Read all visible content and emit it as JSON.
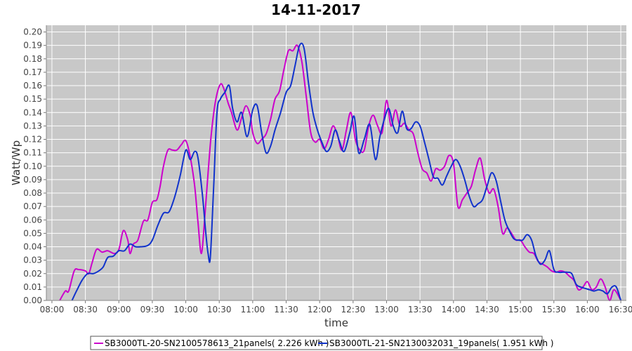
{
  "chart_data": {
    "type": "line",
    "title": "14-11-2017",
    "xlabel": "time",
    "ylabel": "Watt/Wp",
    "xlim": [
      "07:55",
      "16:35"
    ],
    "ylim": [
      0,
      0.205
    ],
    "grid": true,
    "legend_position": "bottom",
    "x_ticks": [
      "08:00",
      "08:30",
      "09:00",
      "09:30",
      "10:00",
      "10:30",
      "11:00",
      "11:30",
      "12:00",
      "12:30",
      "13:00",
      "13:30",
      "14:00",
      "14:30",
      "15:00",
      "15:30",
      "16:00",
      "16:30"
    ],
    "y_ticks": [
      "0.00",
      "0.01",
      "0.02",
      "0.03",
      "0.04",
      "0.05",
      "0.06",
      "0.07",
      "0.08",
      "0.09",
      "0.10",
      "0.11",
      "0.12",
      "0.13",
      "0.14",
      "0.15",
      "0.16",
      "0.17",
      "0.18",
      "0.19",
      "0.20"
    ],
    "series": [
      {
        "name": "SB3000TL-20-SN2100578613_21panels( 2.226 kWh )",
        "color": "#cc00cc",
        "points": [
          [
            "08:07",
            0.0
          ],
          [
            "08:12",
            0.007
          ],
          [
            "08:15",
            0.007
          ],
          [
            "08:20",
            0.022
          ],
          [
            "08:24",
            0.023
          ],
          [
            "08:30",
            0.022
          ],
          [
            "08:33",
            0.02
          ],
          [
            "08:36",
            0.028
          ],
          [
            "08:40",
            0.038
          ],
          [
            "08:45",
            0.036
          ],
          [
            "08:50",
            0.037
          ],
          [
            "08:56",
            0.035
          ],
          [
            "09:00",
            0.038
          ],
          [
            "09:04",
            0.052
          ],
          [
            "09:08",
            0.045
          ],
          [
            "09:10",
            0.035
          ],
          [
            "09:13",
            0.042
          ],
          [
            "09:17",
            0.045
          ],
          [
            "09:22",
            0.059
          ],
          [
            "09:26",
            0.06
          ],
          [
            "09:30",
            0.073
          ],
          [
            "09:34",
            0.075
          ],
          [
            "09:37",
            0.085
          ],
          [
            "09:40",
            0.1
          ],
          [
            "09:44",
            0.112
          ],
          [
            "09:48",
            0.112
          ],
          [
            "09:52",
            0.112
          ],
          [
            "09:56",
            0.116
          ],
          [
            "10:00",
            0.119
          ],
          [
            "10:04",
            0.107
          ],
          [
            "10:08",
            0.085
          ],
          [
            "10:11",
            0.058
          ],
          [
            "10:14",
            0.035
          ],
          [
            "10:17",
            0.062
          ],
          [
            "10:20",
            0.095
          ],
          [
            "10:23",
            0.125
          ],
          [
            "10:27",
            0.15
          ],
          [
            "10:31",
            0.161
          ],
          [
            "10:34",
            0.158
          ],
          [
            "10:38",
            0.147
          ],
          [
            "10:41",
            0.14
          ],
          [
            "10:46",
            0.127
          ],
          [
            "10:50",
            0.136
          ],
          [
            "10:54",
            0.145
          ],
          [
            "10:58",
            0.137
          ],
          [
            "11:00",
            0.125
          ],
          [
            "11:04",
            0.117
          ],
          [
            "11:08",
            0.12
          ],
          [
            "11:12",
            0.124
          ],
          [
            "11:16",
            0.135
          ],
          [
            "11:20",
            0.15
          ],
          [
            "11:24",
            0.156
          ],
          [
            "11:28",
            0.172
          ],
          [
            "11:32",
            0.186
          ],
          [
            "11:36",
            0.186
          ],
          [
            "11:40",
            0.19
          ],
          [
            "11:44",
            0.178
          ],
          [
            "11:48",
            0.152
          ],
          [
            "11:52",
            0.125
          ],
          [
            "11:56",
            0.118
          ],
          [
            "12:00",
            0.12
          ],
          [
            "12:04",
            0.113
          ],
          [
            "12:08",
            0.12
          ],
          [
            "12:12",
            0.13
          ],
          [
            "12:16",
            0.123
          ],
          [
            "12:20",
            0.112
          ],
          [
            "12:24",
            0.127
          ],
          [
            "12:28",
            0.14
          ],
          [
            "12:32",
            0.12
          ],
          [
            "12:36",
            0.112
          ],
          [
            "12:40",
            0.112
          ],
          [
            "12:44",
            0.13
          ],
          [
            "12:48",
            0.138
          ],
          [
            "12:52",
            0.13
          ],
          [
            "12:56",
            0.125
          ],
          [
            "13:00",
            0.149
          ],
          [
            "13:04",
            0.13
          ],
          [
            "13:08",
            0.142
          ],
          [
            "13:12",
            0.13
          ],
          [
            "13:16",
            0.132
          ],
          [
            "13:20",
            0.127
          ],
          [
            "13:24",
            0.124
          ],
          [
            "13:28",
            0.11
          ],
          [
            "13:32",
            0.098
          ],
          [
            "13:36",
            0.095
          ],
          [
            "13:40",
            0.089
          ],
          [
            "13:44",
            0.098
          ],
          [
            "13:48",
            0.097
          ],
          [
            "13:52",
            0.1
          ],
          [
            "13:56",
            0.108
          ],
          [
            "14:00",
            0.102
          ],
          [
            "14:04",
            0.07
          ],
          [
            "14:08",
            0.075
          ],
          [
            "14:12",
            0.08
          ],
          [
            "14:16",
            0.085
          ],
          [
            "14:20",
            0.098
          ],
          [
            "14:24",
            0.106
          ],
          [
            "14:28",
            0.09
          ],
          [
            "14:32",
            0.08
          ],
          [
            "14:36",
            0.083
          ],
          [
            "14:40",
            0.07
          ],
          [
            "14:44",
            0.05
          ],
          [
            "14:48",
            0.054
          ],
          [
            "14:52",
            0.05
          ],
          [
            "14:56",
            0.045
          ],
          [
            "15:00",
            0.045
          ],
          [
            "15:04",
            0.04
          ],
          [
            "15:08",
            0.036
          ],
          [
            "15:12",
            0.035
          ],
          [
            "15:16",
            0.029
          ],
          [
            "15:20",
            0.027
          ],
          [
            "15:24",
            0.025
          ],
          [
            "15:28",
            0.022
          ],
          [
            "15:32",
            0.021
          ],
          [
            "15:36",
            0.022
          ],
          [
            "15:40",
            0.021
          ],
          [
            "15:44",
            0.018
          ],
          [
            "15:48",
            0.015
          ],
          [
            "15:52",
            0.008
          ],
          [
            "15:56",
            0.01
          ],
          [
            "16:00",
            0.014
          ],
          [
            "16:04",
            0.008
          ],
          [
            "16:08",
            0.01
          ],
          [
            "16:12",
            0.016
          ],
          [
            "16:16",
            0.01
          ],
          [
            "16:20",
            0.0
          ],
          [
            "16:24",
            0.008
          ],
          [
            "16:30",
            0.0
          ]
        ]
      },
      {
        "name": "SB3000TL-21-SN2130032031_19panels( 1.951 kWh )",
        "color": "#1133cc",
        "points": [
          [
            "08:18",
            0.0
          ],
          [
            "08:22",
            0.007
          ],
          [
            "08:27",
            0.015
          ],
          [
            "08:32",
            0.02
          ],
          [
            "08:37",
            0.02
          ],
          [
            "08:42",
            0.022
          ],
          [
            "08:46",
            0.025
          ],
          [
            "08:50",
            0.032
          ],
          [
            "08:55",
            0.033
          ],
          [
            "09:00",
            0.037
          ],
          [
            "09:05",
            0.037
          ],
          [
            "09:10",
            0.042
          ],
          [
            "09:15",
            0.04
          ],
          [
            "09:20",
            0.04
          ],
          [
            "09:26",
            0.041
          ],
          [
            "09:30",
            0.045
          ],
          [
            "09:35",
            0.056
          ],
          [
            "09:40",
            0.065
          ],
          [
            "09:45",
            0.066
          ],
          [
            "09:50",
            0.077
          ],
          [
            "09:55",
            0.093
          ],
          [
            "10:00",
            0.112
          ],
          [
            "10:04",
            0.105
          ],
          [
            "10:08",
            0.111
          ],
          [
            "10:11",
            0.106
          ],
          [
            "10:15",
            0.078
          ],
          [
            "10:18",
            0.05
          ],
          [
            "10:20",
            0.035
          ],
          [
            "10:22",
            0.032
          ],
          [
            "10:25",
            0.085
          ],
          [
            "10:28",
            0.14
          ],
          [
            "10:31",
            0.15
          ],
          [
            "10:35",
            0.155
          ],
          [
            "10:39",
            0.16
          ],
          [
            "10:42",
            0.143
          ],
          [
            "10:46",
            0.133
          ],
          [
            "10:50",
            0.14
          ],
          [
            "10:55",
            0.122
          ],
          [
            "11:00",
            0.142
          ],
          [
            "11:04",
            0.145
          ],
          [
            "11:08",
            0.125
          ],
          [
            "11:12",
            0.11
          ],
          [
            "11:16",
            0.115
          ],
          [
            "11:20",
            0.127
          ],
          [
            "11:25",
            0.14
          ],
          [
            "11:30",
            0.155
          ],
          [
            "11:34",
            0.16
          ],
          [
            "11:38",
            0.175
          ],
          [
            "11:42",
            0.19
          ],
          [
            "11:46",
            0.188
          ],
          [
            "11:50",
            0.162
          ],
          [
            "11:54",
            0.14
          ],
          [
            "11:58",
            0.127
          ],
          [
            "12:02",
            0.118
          ],
          [
            "12:06",
            0.111
          ],
          [
            "12:10",
            0.115
          ],
          [
            "12:14",
            0.127
          ],
          [
            "12:18",
            0.118
          ],
          [
            "12:22",
            0.111
          ],
          [
            "12:27",
            0.125
          ],
          [
            "12:31",
            0.137
          ],
          [
            "12:35",
            0.11
          ],
          [
            "12:40",
            0.12
          ],
          [
            "12:45",
            0.131
          ],
          [
            "12:50",
            0.105
          ],
          [
            "12:54",
            0.122
          ],
          [
            "12:58",
            0.135
          ],
          [
            "13:02",
            0.143
          ],
          [
            "13:06",
            0.13
          ],
          [
            "13:10",
            0.125
          ],
          [
            "13:14",
            0.141
          ],
          [
            "13:18",
            0.128
          ],
          [
            "13:22",
            0.128
          ],
          [
            "13:26",
            0.133
          ],
          [
            "13:30",
            0.13
          ],
          [
            "13:34",
            0.118
          ],
          [
            "13:38",
            0.105
          ],
          [
            "13:42",
            0.092
          ],
          [
            "13:46",
            0.091
          ],
          [
            "13:50",
            0.086
          ],
          [
            "13:54",
            0.093
          ],
          [
            "13:58",
            0.1
          ],
          [
            "14:02",
            0.105
          ],
          [
            "14:06",
            0.1
          ],
          [
            "14:10",
            0.09
          ],
          [
            "14:14",
            0.078
          ],
          [
            "14:18",
            0.07
          ],
          [
            "14:22",
            0.072
          ],
          [
            "14:26",
            0.075
          ],
          [
            "14:30",
            0.085
          ],
          [
            "14:34",
            0.095
          ],
          [
            "14:38",
            0.09
          ],
          [
            "14:42",
            0.075
          ],
          [
            "14:46",
            0.06
          ],
          [
            "14:50",
            0.052
          ],
          [
            "14:54",
            0.046
          ],
          [
            "14:58",
            0.045
          ],
          [
            "15:02",
            0.045
          ],
          [
            "15:06",
            0.049
          ],
          [
            "15:10",
            0.045
          ],
          [
            "15:14",
            0.033
          ],
          [
            "15:18",
            0.027
          ],
          [
            "15:22",
            0.03
          ],
          [
            "15:26",
            0.037
          ],
          [
            "15:30",
            0.023
          ],
          [
            "15:34",
            0.021
          ],
          [
            "15:38",
            0.021
          ],
          [
            "15:42",
            0.021
          ],
          [
            "15:46",
            0.02
          ],
          [
            "15:50",
            0.012
          ],
          [
            "15:54",
            0.01
          ],
          [
            "15:58",
            0.009
          ],
          [
            "16:02",
            0.008
          ],
          [
            "16:06",
            0.007
          ],
          [
            "16:10",
            0.008
          ],
          [
            "16:14",
            0.007
          ],
          [
            "16:18",
            0.005
          ],
          [
            "16:22",
            0.01
          ],
          [
            "16:26",
            0.01
          ],
          [
            "16:30",
            0.0
          ]
        ]
      }
    ]
  }
}
